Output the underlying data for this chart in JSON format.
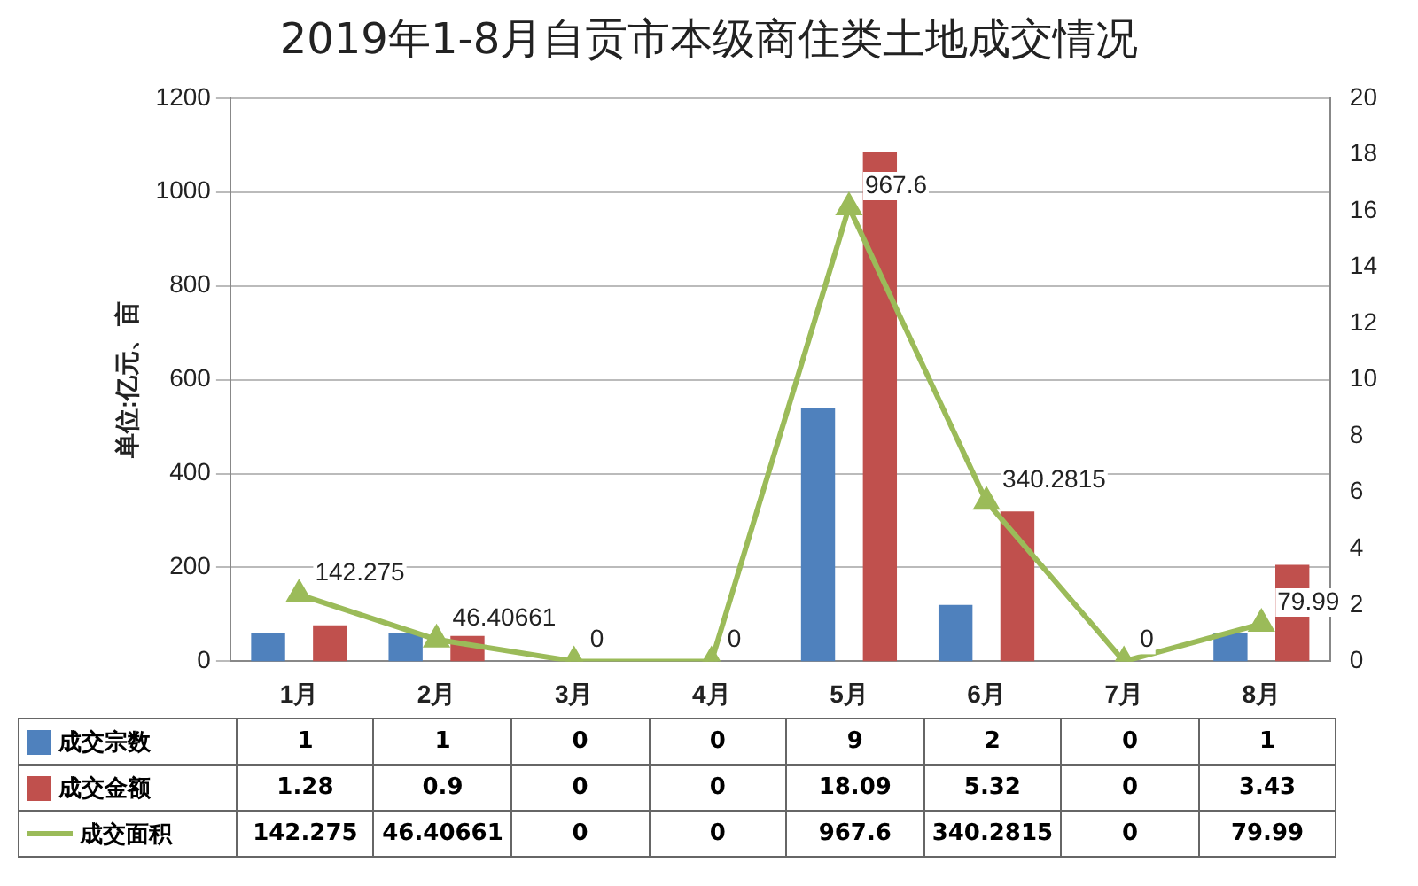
{
  "chart_data": {
    "type": "bar",
    "title": "2019年1-8月自贡市本级商住类土地成交情况",
    "ylabel": "单位:亿元、亩",
    "categories": [
      "1月",
      "2月",
      "3月",
      "4月",
      "5月",
      "6月",
      "7月",
      "8月"
    ],
    "series": [
      {
        "name": "成交宗数",
        "color": "#4f81bd",
        "axis": "y2",
        "values": [
          1,
          1,
          0,
          0,
          9,
          2,
          0,
          1
        ]
      },
      {
        "name": "成交金额",
        "color": "#c0504d",
        "axis": "y2",
        "values": [
          1.28,
          0.9,
          0,
          0,
          18.09,
          5.32,
          0,
          3.43
        ]
      },
      {
        "name": "成交面积",
        "type": "line",
        "color": "#9bbb59",
        "marker": "triangle",
        "values": [
          142.275,
          46.40661,
          0,
          0,
          967.6,
          340.2815,
          0,
          79.99
        ]
      }
    ],
    "annotations": [
      {
        "text": "142.275",
        "x": "1月",
        "y": 142.275
      },
      {
        "text": "46.40661",
        "x": "2月",
        "y": 46.40661
      },
      {
        "text": "0",
        "x": "3月",
        "y": 0
      },
      {
        "text": "0",
        "x": "4月",
        "y": 0
      },
      {
        "text": "967.6",
        "x": "5月",
        "y": 967.6
      },
      {
        "text": "340.2815",
        "x": "6月",
        "y": 340.2815
      },
      {
        "text": "0",
        "x": "7月",
        "y": 0
      },
      {
        "text": "79.99",
        "x": "8月",
        "y": 79.99
      }
    ],
    "ylim": [
      0,
      1200
    ],
    "yticks": [
      0,
      200,
      400,
      600,
      800,
      1000,
      1200
    ],
    "y2lim": [
      0,
      20
    ],
    "y2ticks": [
      0,
      2,
      4,
      6,
      8,
      10,
      12,
      14,
      16,
      18,
      20
    ],
    "grid": "y",
    "legend": "bottom",
    "data_labels": true
  }
}
